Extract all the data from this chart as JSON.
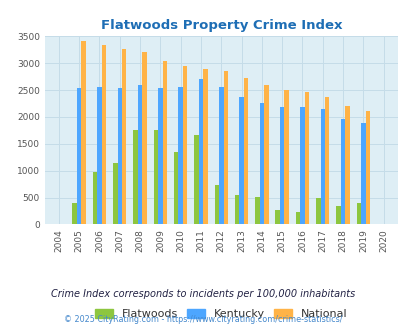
{
  "title": "Flatwoods Property Crime Index",
  "years": [
    2004,
    2005,
    2006,
    2007,
    2008,
    2009,
    2010,
    2011,
    2012,
    2013,
    2014,
    2015,
    2016,
    2017,
    2018,
    2019,
    2020
  ],
  "flatwoods": [
    0,
    400,
    980,
    1150,
    1750,
    1760,
    1350,
    1660,
    740,
    540,
    510,
    260,
    240,
    490,
    340,
    390,
    0
  ],
  "kentucky": [
    0,
    2530,
    2550,
    2530,
    2600,
    2530,
    2550,
    2700,
    2550,
    2370,
    2250,
    2180,
    2190,
    2140,
    1970,
    1890,
    0
  ],
  "national": [
    0,
    3420,
    3330,
    3260,
    3210,
    3040,
    2950,
    2900,
    2860,
    2720,
    2590,
    2500,
    2460,
    2370,
    2210,
    2110,
    0
  ],
  "bar_width": 0.22,
  "colors": {
    "flatwoods": "#8dc63f",
    "kentucky": "#4da6ff",
    "national": "#ffb347"
  },
  "bg_color": "#deeef5",
  "ylim": [
    0,
    3500
  ],
  "yticks": [
    0,
    500,
    1000,
    1500,
    2000,
    2500,
    3000,
    3500
  ],
  "title_color": "#1e6eb5",
  "legend_labels": [
    "Flatwoods",
    "Kentucky",
    "National"
  ],
  "footnote1": "Crime Index corresponds to incidents per 100,000 inhabitants",
  "footnote2": "© 2025 CityRating.com - https://www.cityrating.com/crime-statistics/",
  "grid_color": "#c5dce8",
  "footnote2_color": "#4488cc"
}
